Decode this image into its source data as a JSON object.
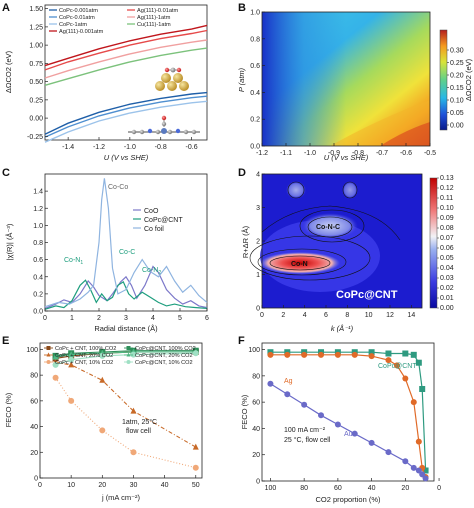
{
  "chart_data": [
    {
      "panel": "A",
      "type": "line",
      "xlabel": "U (V vs SHE)",
      "ylabel": "ΔΩCO2 (eV)",
      "xlim": [
        -1.55,
        -0.5
      ],
      "ylim": [
        -0.3,
        1.55
      ],
      "xticks": [
        "-1.4",
        "-1.2",
        "-1.0",
        "-0.8",
        "-0.6"
      ],
      "yticks": [
        "-0.25",
        "0.00",
        "0.25",
        "0.50",
        "0.75",
        "1.00",
        "1.25",
        "1.50"
      ],
      "legend_left": [
        "CoPc-0.001atm",
        "CoPc-0.01atm",
        "CoPc-1atm",
        "Ag(111)-0.001atm"
      ],
      "legend_right": [
        "Ag(111)-0.01atm",
        "Ag(111)-1atm",
        "Cu(111)-1atm"
      ],
      "series": [
        {
          "name": "CoPc-0.001atm",
          "color": "#1f5fa8",
          "x": [
            -1.55,
            -1.4,
            -1.2,
            -1.0,
            -0.8,
            -0.6,
            -0.5
          ],
          "y": [
            -0.22,
            -0.07,
            0.08,
            0.19,
            0.27,
            0.33,
            0.35
          ]
        },
        {
          "name": "CoPc-0.01atm",
          "color": "#4f8fd0",
          "x": [
            -1.55,
            -1.4,
            -1.2,
            -1.0,
            -0.8,
            -0.6,
            -0.5
          ],
          "y": [
            -0.26,
            -0.12,
            0.03,
            0.14,
            0.22,
            0.28,
            0.3
          ]
        },
        {
          "name": "CoPc-1atm",
          "color": "#9cc3ea",
          "x": [
            -1.55,
            -1.4,
            -1.2,
            -1.0,
            -0.8,
            -0.6,
            -0.5
          ],
          "y": [
            -0.33,
            -0.19,
            -0.04,
            0.07,
            0.15,
            0.21,
            0.23
          ]
        },
        {
          "name": "Ag(111)-0.001atm",
          "color": "#c0161c",
          "x": [
            -1.55,
            -1.4,
            -1.2,
            -1.0,
            -0.8,
            -0.6,
            -0.5
          ],
          "y": [
            0.72,
            0.82,
            0.95,
            1.06,
            1.15,
            1.22,
            1.27
          ]
        },
        {
          "name": "Ag(111)-0.01atm",
          "color": "#e64a4a",
          "x": [
            -1.55,
            -1.4,
            -1.2,
            -1.0,
            -0.8,
            -0.6,
            -0.5
          ],
          "y": [
            0.66,
            0.77,
            0.89,
            1.0,
            1.09,
            1.16,
            1.2
          ]
        },
        {
          "name": "Ag(111)-1atm",
          "color": "#f0a0a0",
          "x": [
            -1.55,
            -1.4,
            -1.2,
            -1.0,
            -0.8,
            -0.6,
            -0.5
          ],
          "y": [
            0.55,
            0.65,
            0.77,
            0.88,
            0.97,
            1.04,
            1.07
          ]
        },
        {
          "name": "Cu(111)-1atm",
          "color": "#7cc27c",
          "x": [
            -1.55,
            -1.4,
            -1.2,
            -1.0,
            -0.8,
            -0.6,
            -0.5
          ],
          "y": [
            0.45,
            0.54,
            0.66,
            0.77,
            0.86,
            0.93,
            0.96
          ]
        }
      ]
    },
    {
      "panel": "B",
      "type": "heatmap",
      "xlabel": "U (V vs SHE)",
      "ylabel": "P (atm)",
      "colorbar_label": "ΔΩCO2 (eV)",
      "xlim": [
        -1.2,
        -0.5
      ],
      "ylim": [
        0.0,
        1.0
      ],
      "xticks": [
        "-1.2",
        "-1.1",
        "-1.0",
        "-0.9",
        "-0.8",
        "-0.7",
        "-0.6",
        "-0.5"
      ],
      "yticks": [
        "0.0",
        "0.2",
        "0.4",
        "0.6",
        "0.8",
        "1.0"
      ],
      "colorbar_ticks": [
        "0.00",
        "0.05",
        "0.10",
        "0.15",
        "0.20",
        "0.25",
        "0.30"
      ],
      "zlim": [
        -0.02,
        0.38
      ]
    },
    {
      "panel": "C",
      "type": "line",
      "xlabel": "Radial distance (Å)",
      "ylabel": "|χ(R)| (Å⁻³)",
      "xlim": [
        0,
        6
      ],
      "ylim": [
        0,
        1.6
      ],
      "xticks": [
        "0",
        "1",
        "2",
        "3",
        "4",
        "5",
        "6"
      ],
      "yticks": [
        "0.0",
        "0.2",
        "0.4",
        "0.6",
        "0.8",
        "1.0",
        "1.2",
        "1.4"
      ],
      "legend": [
        "CoO",
        "CoPc@CNT",
        "Co foil"
      ],
      "annotations": [
        "Co-Co",
        "Co-C",
        "Co-N1",
        "Co-N2"
      ],
      "series": [
        {
          "name": "CoO",
          "color": "#7c78c9",
          "x": [
            0,
            0.4,
            0.7,
            1.0,
            1.3,
            1.6,
            1.8,
            2.0,
            2.3,
            2.5,
            2.8,
            3.0,
            3.2,
            3.4,
            3.7,
            4.0,
            4.2,
            4.5,
            4.8,
            5.1,
            5.4,
            5.7,
            6.0
          ],
          "y": [
            0.03,
            0.08,
            0.13,
            0.1,
            0.2,
            0.35,
            0.28,
            0.18,
            0.12,
            0.2,
            0.34,
            0.4,
            0.3,
            0.15,
            0.3,
            0.52,
            0.45,
            0.25,
            0.15,
            0.08,
            0.12,
            0.06,
            0.04
          ]
        },
        {
          "name": "CoPc@CNT",
          "color": "#1e9e7e",
          "x": [
            0,
            0.4,
            0.7,
            1.0,
            1.3,
            1.5,
            1.7,
            1.9,
            2.1,
            2.3,
            2.5,
            2.7,
            2.9,
            3.1,
            3.3,
            3.6,
            3.9,
            4.2,
            4.5,
            4.8,
            5.2,
            5.6,
            6.0
          ],
          "y": [
            0.02,
            0.06,
            0.04,
            0.12,
            0.3,
            0.36,
            0.24,
            0.1,
            0.2,
            0.12,
            0.16,
            0.3,
            0.34,
            0.2,
            0.14,
            0.22,
            0.16,
            0.1,
            0.06,
            0.08,
            0.05,
            0.04,
            0.03
          ]
        },
        {
          "name": "Co foil",
          "color": "#8fb4e0",
          "x": [
            0,
            0.5,
            0.9,
            1.3,
            1.6,
            1.8,
            2.0,
            2.1,
            2.2,
            2.35,
            2.5,
            2.7,
            3.0,
            3.3,
            3.6,
            3.9,
            4.2,
            4.5,
            4.8,
            5.1,
            5.4,
            5.7,
            6.0
          ],
          "y": [
            0.05,
            0.1,
            0.08,
            0.14,
            0.22,
            0.3,
            0.8,
            1.3,
            1.55,
            1.2,
            0.5,
            0.2,
            0.25,
            0.45,
            0.6,
            0.46,
            0.4,
            0.52,
            0.35,
            0.22,
            0.3,
            0.18,
            0.1
          ]
        }
      ]
    },
    {
      "panel": "D",
      "type": "heatmap",
      "xlabel": "k (Å⁻¹)",
      "ylabel": "R+ΔR (Å)",
      "xlim": [
        0,
        15
      ],
      "ylim": [
        0,
        4
      ],
      "xticks": [
        "0",
        "2",
        "4",
        "6",
        "8",
        "10",
        "12",
        "14"
      ],
      "yticks": [
        "0",
        "1",
        "2",
        "3",
        "4"
      ],
      "colorbar_ticks": [
        "0.00",
        "0.01",
        "0.02",
        "0.03",
        "0.04",
        "0.05",
        "0.06",
        "0.07",
        "0.08",
        "0.09",
        "0.10",
        "0.11",
        "0.12",
        "0.13"
      ],
      "zlim": [
        0,
        0.13
      ],
      "annotations": [
        "Co-N",
        "Co-N-C",
        "CoPc@CNT"
      ]
    },
    {
      "panel": "E",
      "type": "scatter",
      "xlabel": "j (mA cm⁻²)",
      "ylabel": "FECO (%)",
      "xlim": [
        0,
        52
      ],
      "ylim": [
        0,
        105
      ],
      "xticks": [
        "0",
        "10",
        "20",
        "30",
        "40",
        "50"
      ],
      "yticks": [
        "0",
        "20",
        "40",
        "60",
        "80",
        "100"
      ],
      "legend": [
        "CoPc + CNT, 100% CO2",
        "CoPc@CNT, 100% CO2",
        "CoPc + CNT, 20% CO2",
        "CoPc@CNT, 20% CO2",
        "CoPc + CNT, 10% CO2",
        "CoPc@CNT, 10% CO2"
      ],
      "annotation": [
        "1atm, 25°C",
        "flow cell"
      ],
      "series": [
        {
          "name": "CoPc + CNT, 100% CO2",
          "color": "#8a4a1a",
          "marker": "square",
          "x": [
            5,
            10,
            20,
            30,
            50
          ],
          "y": [
            93,
            95,
            97,
            98,
            98
          ]
        },
        {
          "name": "CoPc@CNT, 100% CO2",
          "color": "#2e8f5a",
          "marker": "square",
          "x": [
            5,
            10,
            20,
            30,
            50
          ],
          "y": [
            95,
            97,
            98,
            99,
            99
          ]
        },
        {
          "name": "CoPc + CNT, 20% CO2",
          "color": "#c86a28",
          "marker": "triangle",
          "x": [
            5,
            10,
            20,
            30,
            50
          ],
          "y": [
            90,
            88,
            76,
            52,
            24
          ]
        },
        {
          "name": "CoPc@CNT, 20% CO2",
          "color": "#4fb883",
          "marker": "triangle",
          "x": [
            5,
            10,
            20,
            30,
            50
          ],
          "y": [
            94,
            96,
            97,
            98,
            98
          ]
        },
        {
          "name": "CoPc + CNT, 10% CO2",
          "color": "#f0a878",
          "marker": "circle",
          "x": [
            5,
            10,
            20,
            30,
            50
          ],
          "y": [
            78,
            60,
            37,
            20,
            8
          ]
        },
        {
          "name": "CoPc@CNT, 10% CO2",
          "color": "#9fe0c4",
          "marker": "circle",
          "x": [
            5,
            10,
            20,
            30,
            50
          ],
          "y": [
            88,
            92,
            95,
            96,
            97
          ]
        }
      ]
    },
    {
      "panel": "F",
      "type": "line",
      "xlabel": "CO2 proportion (%)",
      "ylabel": "FECO (%)",
      "xlim": [
        105,
        3
      ],
      "ylim": [
        0,
        105
      ],
      "xticks": [
        "100",
        "80",
        "60",
        "40",
        "20",
        "0"
      ],
      "yticks": [
        "0",
        "20",
        "40",
        "60",
        "80",
        "100"
      ],
      "annotation": [
        "100 mA cm⁻²",
        "25 °C, flow cell"
      ],
      "series": [
        {
          "name": "CoPc@CNT",
          "color": "#2e9a80",
          "marker": "square",
          "x": [
            100,
            90,
            80,
            70,
            60,
            50,
            40,
            30,
            20,
            15,
            12,
            10,
            8
          ],
          "y": [
            98,
            98,
            98,
            98,
            98,
            98,
            98,
            97,
            97,
            96,
            90,
            70,
            8
          ]
        },
        {
          "name": "Ag",
          "color": "#e06a28",
          "marker": "circle",
          "x": [
            100,
            90,
            80,
            70,
            60,
            50,
            40,
            30,
            25,
            20,
            15,
            12,
            10,
            8
          ],
          "y": [
            96,
            96,
            96,
            96,
            96,
            96,
            95,
            92,
            88,
            78,
            60,
            30,
            10,
            3
          ]
        },
        {
          "name": "Au",
          "color": "#6a6ac8",
          "marker": "circle",
          "x": [
            100,
            90,
            80,
            70,
            60,
            50,
            40,
            30,
            20,
            15,
            12,
            10,
            8
          ],
          "y": [
            74,
            66,
            58,
            50,
            43,
            36,
            29,
            22,
            15,
            10,
            8,
            5,
            2
          ]
        }
      ]
    }
  ]
}
